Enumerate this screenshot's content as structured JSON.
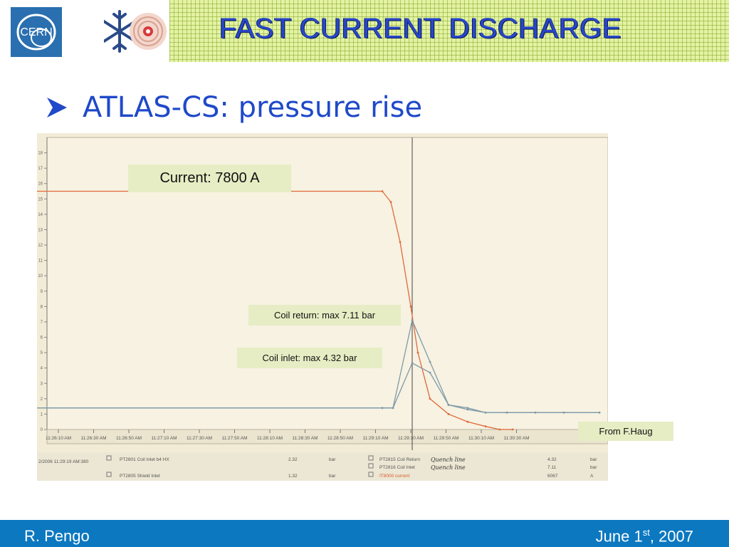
{
  "header": {
    "title": "FAST CURRENT DISCHARGE",
    "logo_text": "CERN"
  },
  "slide": {
    "bullet": "ATLAS-CS: pressure rise"
  },
  "annotations": {
    "current": "Current: 7800 A",
    "coil_return": "Coil return: max 7.11 bar",
    "coil_inlet": "Coil inlet: max 4.32 bar",
    "source": "From F.Haug"
  },
  "footer": {
    "author": "R. Pengo",
    "date_prefix": "June 1",
    "date_sup": "st",
    "date_suffix": ", 2007"
  },
  "colors": {
    "title": "#2847c9",
    "bullet": "#1f49c9",
    "footer_bg": "#0b78c0",
    "current_trace": "#e06a3c",
    "pressure_trace": "#7f9aa8"
  },
  "chart_data": {
    "type": "line",
    "ylim": [
      0,
      19
    ],
    "y_ticks": [
      0,
      1,
      2,
      3,
      4,
      5,
      6,
      7,
      8,
      9,
      10,
      11,
      12,
      13,
      14,
      15,
      16,
      17,
      18
    ],
    "x_ticks": [
      "11:26:10 AM",
      "11:26:30 AM",
      "11:26:50 AM",
      "11:27:10 AM",
      "11:27:30 AM",
      "11:27:50 AM",
      "11:28:10 AM",
      "11:28:30 AM",
      "11:28:50 AM",
      "11:29:10 AM",
      "11:29:30 AM",
      "11:29:50 AM",
      "11:30:10 AM",
      "11:30:30 AM"
    ],
    "cursor_time": "11:29:19 AM",
    "series": [
      {
        "name": "IT8000 current",
        "color": "#e06a3c",
        "x": [
          0,
          485,
          497,
          510,
          525,
          535,
          552,
          578,
          605,
          630,
          650,
          668
        ],
        "y": [
          15.5,
          15.5,
          14.8,
          12.2,
          8.0,
          5.0,
          2.0,
          1.0,
          0.5,
          0.2,
          0.0,
          0.0
        ]
      },
      {
        "name": "PT2815 Coil Return",
        "color": "#7f9aa8",
        "x": [
          0,
          485,
          500,
          527,
          552,
          578,
          605,
          630,
          660,
          700,
          740,
          790
        ],
        "y": [
          1.4,
          1.4,
          1.4,
          7.11,
          4.4,
          1.6,
          1.4,
          1.1,
          1.1,
          1.1,
          1.1,
          1.1
        ]
      },
      {
        "name": "PT2816 Coil Inlet",
        "color": "#7f9aa8",
        "x": [
          0,
          485,
          500,
          527,
          552,
          578,
          605,
          630,
          660,
          700,
          740,
          790
        ],
        "y": [
          1.4,
          1.4,
          1.4,
          4.32,
          3.7,
          1.6,
          1.3,
          1.1,
          1.1,
          1.1,
          1.1,
          1.1
        ]
      }
    ],
    "table": {
      "header_time": "2/2006 11:29:19 AM:380",
      "left_rows": [
        {
          "name": "PT2801 Coil Inlet b4 HX",
          "value": "2.32",
          "unit": "bar"
        },
        {
          "name": "PT2805 Shield Inlet",
          "value": "1.32",
          "unit": "bar"
        }
      ],
      "right_rows": [
        {
          "name": "PT2815 Coil Return",
          "value": "4.32",
          "unit": "bar"
        },
        {
          "name": "PT2816 Coil Inlet",
          "value": "7.11",
          "unit": "bar"
        },
        {
          "name": "IT8000 current",
          "value": "6067",
          "unit": "A"
        }
      ],
      "handwritten": [
        "Quench line",
        "Quench line"
      ]
    }
  }
}
